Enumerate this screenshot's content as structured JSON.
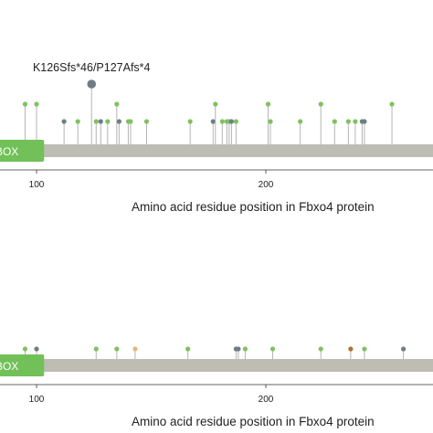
{
  "chart_data": [
    {
      "type": "lollipop",
      "xlabel": "Amino acid residue position in Fbxo4 protein",
      "x_ticks": [
        100,
        200
      ],
      "domain": {
        "label": "FBOX",
        "end": 103
      },
      "annotation": {
        "text": "K126Sfs*46/P127Afs*4",
        "x": 124
      },
      "series": [
        {
          "x": 95,
          "height": 1,
          "color": "#7fc15f"
        },
        {
          "x": 100,
          "height": 1,
          "color": "#7fc15f"
        },
        {
          "x": 112,
          "height": 0,
          "color": "#6e7d86"
        },
        {
          "x": 118,
          "height": 0,
          "color": "#7fc15f"
        },
        {
          "x": 124,
          "height": 2,
          "color": "#6e7d86"
        },
        {
          "x": 126,
          "height": 0,
          "color": "#7fc15f"
        },
        {
          "x": 128,
          "height": 0,
          "color": "#6e7d86"
        },
        {
          "x": 131,
          "height": 0,
          "color": "#7fc15f"
        },
        {
          "x": 135,
          "height": 1,
          "color": "#7fc15f"
        },
        {
          "x": 136,
          "height": 0,
          "color": "#6e7d86"
        },
        {
          "x": 140,
          "height": 0,
          "color": "#7fc15f"
        },
        {
          "x": 141,
          "height": 0,
          "color": "#7fc15f"
        },
        {
          "x": 148,
          "height": 0,
          "color": "#7fc15f"
        },
        {
          "x": 167,
          "height": 0,
          "color": "#7fc15f"
        },
        {
          "x": 177,
          "height": 0,
          "color": "#6e7d86"
        },
        {
          "x": 178,
          "height": 1,
          "color": "#7fc15f"
        },
        {
          "x": 181,
          "height": 0,
          "color": "#7fc15f"
        },
        {
          "x": 183,
          "height": 0,
          "color": "#7fc15f"
        },
        {
          "x": 184,
          "height": 0,
          "color": "#7fc15f"
        },
        {
          "x": 185,
          "height": 0,
          "color": "#6e7d86"
        },
        {
          "x": 187,
          "height": 0,
          "color": "#7fc15f"
        },
        {
          "x": 201,
          "height": 1,
          "color": "#7fc15f"
        },
        {
          "x": 202,
          "height": 0,
          "color": "#7fc15f"
        },
        {
          "x": 215,
          "height": 0,
          "color": "#7fc15f"
        },
        {
          "x": 224,
          "height": 1,
          "color": "#7fc15f"
        },
        {
          "x": 230,
          "height": 0,
          "color": "#7fc15f"
        },
        {
          "x": 236,
          "height": 0,
          "color": "#7fc15f"
        },
        {
          "x": 239,
          "height": 0,
          "color": "#7fc15f"
        },
        {
          "x": 242,
          "height": 0,
          "color": "#6e7d86"
        },
        {
          "x": 243,
          "height": 0,
          "color": "#6e7d86"
        },
        {
          "x": 255,
          "height": 1,
          "color": "#7fc15f"
        }
      ]
    },
    {
      "type": "lollipop",
      "xlabel": "Amino acid residue position in Fbxo4 protein",
      "x_ticks": [
        100,
        200
      ],
      "domain": {
        "label": "FBOX",
        "end": 103
      },
      "series": [
        {
          "x": 95,
          "height": 0,
          "color": "#7fc15f"
        },
        {
          "x": 100,
          "height": 0,
          "color": "#6e7d86"
        },
        {
          "x": 126,
          "height": 0,
          "color": "#7fc15f"
        },
        {
          "x": 135,
          "height": 0,
          "color": "#7fc15f"
        },
        {
          "x": 143,
          "height": 0,
          "color": "#e8b87a"
        },
        {
          "x": 166,
          "height": 0,
          "color": "#7fc15f"
        },
        {
          "x": 187,
          "height": 0,
          "color": "#6e7d86"
        },
        {
          "x": 188,
          "height": 0,
          "color": "#6e7d86"
        },
        {
          "x": 191,
          "height": 0,
          "color": "#7fc15f"
        },
        {
          "x": 203,
          "height": 0,
          "color": "#7fc15f"
        },
        {
          "x": 224,
          "height": 0,
          "color": "#7fc15f"
        },
        {
          "x": 237,
          "height": 0,
          "color": "#b07030"
        },
        {
          "x": 243,
          "height": 0,
          "color": "#7fc15f"
        },
        {
          "x": 260,
          "height": 0,
          "color": "#6e7d86"
        }
      ]
    }
  ]
}
